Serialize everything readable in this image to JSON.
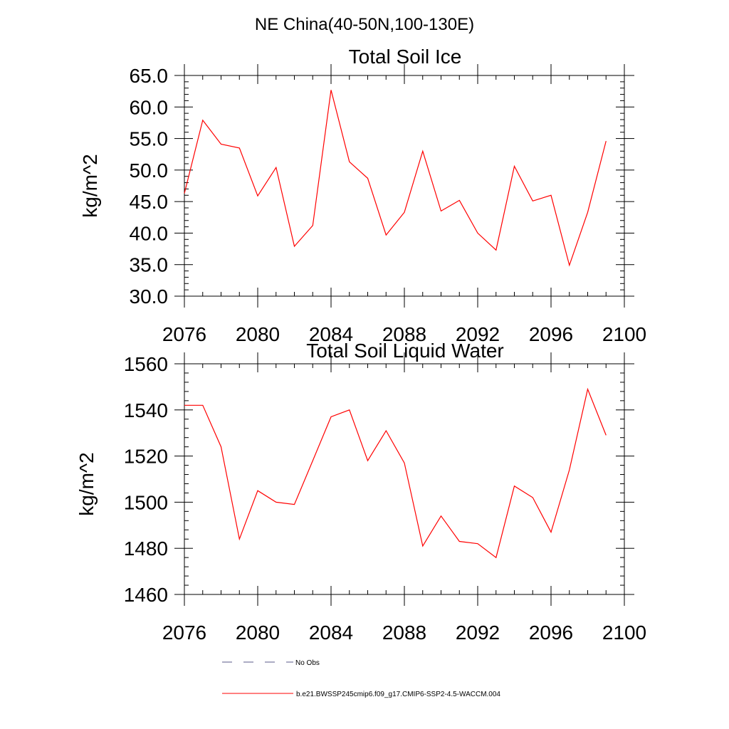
{
  "figure": {
    "suptitle": "NE China(40-50N,100-130E)",
    "colors": {
      "series": "#ff0000",
      "obs": "#5a5a8a",
      "axis": "#000000"
    }
  },
  "chart_data": [
    {
      "type": "line",
      "title": "Total Soil Ice",
      "xlabel": "",
      "ylabel": "kg/m^2",
      "xlim": [
        2076,
        2100
      ],
      "ylim": [
        30,
        65
      ],
      "xticks": [
        2076,
        2080,
        2084,
        2088,
        2092,
        2096,
        2100
      ],
      "yticks": [
        30,
        35,
        40,
        45,
        50,
        55,
        60,
        65
      ],
      "ytick_labels": [
        "30.0",
        "35.0",
        "40.0",
        "45.0",
        "50.0",
        "55.0",
        "60.0",
        "65.0"
      ],
      "grid": false,
      "x": [
        2076,
        2077,
        2078,
        2079,
        2080,
        2081,
        2082,
        2083,
        2084,
        2085,
        2086,
        2087,
        2088,
        2089,
        2090,
        2091,
        2092,
        2093,
        2094,
        2095,
        2096,
        2097,
        2098,
        2099
      ],
      "series": [
        {
          "name": "b.e21.BWSSP245cmip6.f09_g17.CMIP6-SSP2-4.5-WACCM.004",
          "values": [
            46.3,
            57.9,
            54.1,
            53.5,
            45.9,
            50.4,
            37.9,
            41.2,
            62.7,
            51.3,
            48.7,
            39.7,
            43.3,
            53.0,
            43.5,
            45.2,
            40.0,
            37.3,
            50.6,
            45.1,
            46.0,
            34.9,
            43.3,
            54.6
          ]
        }
      ]
    },
    {
      "type": "line",
      "title": "Total Soil Liquid Water",
      "xlabel": "",
      "ylabel": "kg/m^2",
      "xlim": [
        2076,
        2100
      ],
      "ylim": [
        1460,
        1565
      ],
      "xticks": [
        2076,
        2080,
        2084,
        2088,
        2092,
        2096,
        2100
      ],
      "yticks": [
        1460,
        1480,
        1500,
        1520,
        1540,
        1560
      ],
      "ytick_labels": [
        "1460",
        "1480",
        "1500",
        "1520",
        "1540",
        "1560"
      ],
      "grid": false,
      "x": [
        2076,
        2077,
        2078,
        2079,
        2080,
        2081,
        2082,
        2083,
        2084,
        2085,
        2086,
        2087,
        2088,
        2089,
        2090,
        2091,
        2092,
        2093,
        2094,
        2095,
        2096,
        2097,
        2098,
        2099
      ],
      "series": [
        {
          "name": "b.e21.BWSSP245cmip6.f09_g17.CMIP6-SSP2-4.5-WACCM.004",
          "values": [
            1542,
            1542,
            1524,
            1484,
            1505,
            1500,
            1499,
            1518,
            1537,
            1540,
            1518,
            1531,
            1517,
            1481,
            1494,
            1483,
            1482,
            1476,
            1507,
            1502,
            1487,
            1514,
            1549,
            1529
          ]
        }
      ]
    }
  ],
  "legend": {
    "placement": "bottom",
    "entries": [
      {
        "label": "No Obs",
        "style": "dashed"
      },
      {
        "label": "b.e21.BWSSP245cmip6.f09_g17.CMIP6-SSP2-4.5-WACCM.004",
        "style": "solid"
      }
    ]
  }
}
